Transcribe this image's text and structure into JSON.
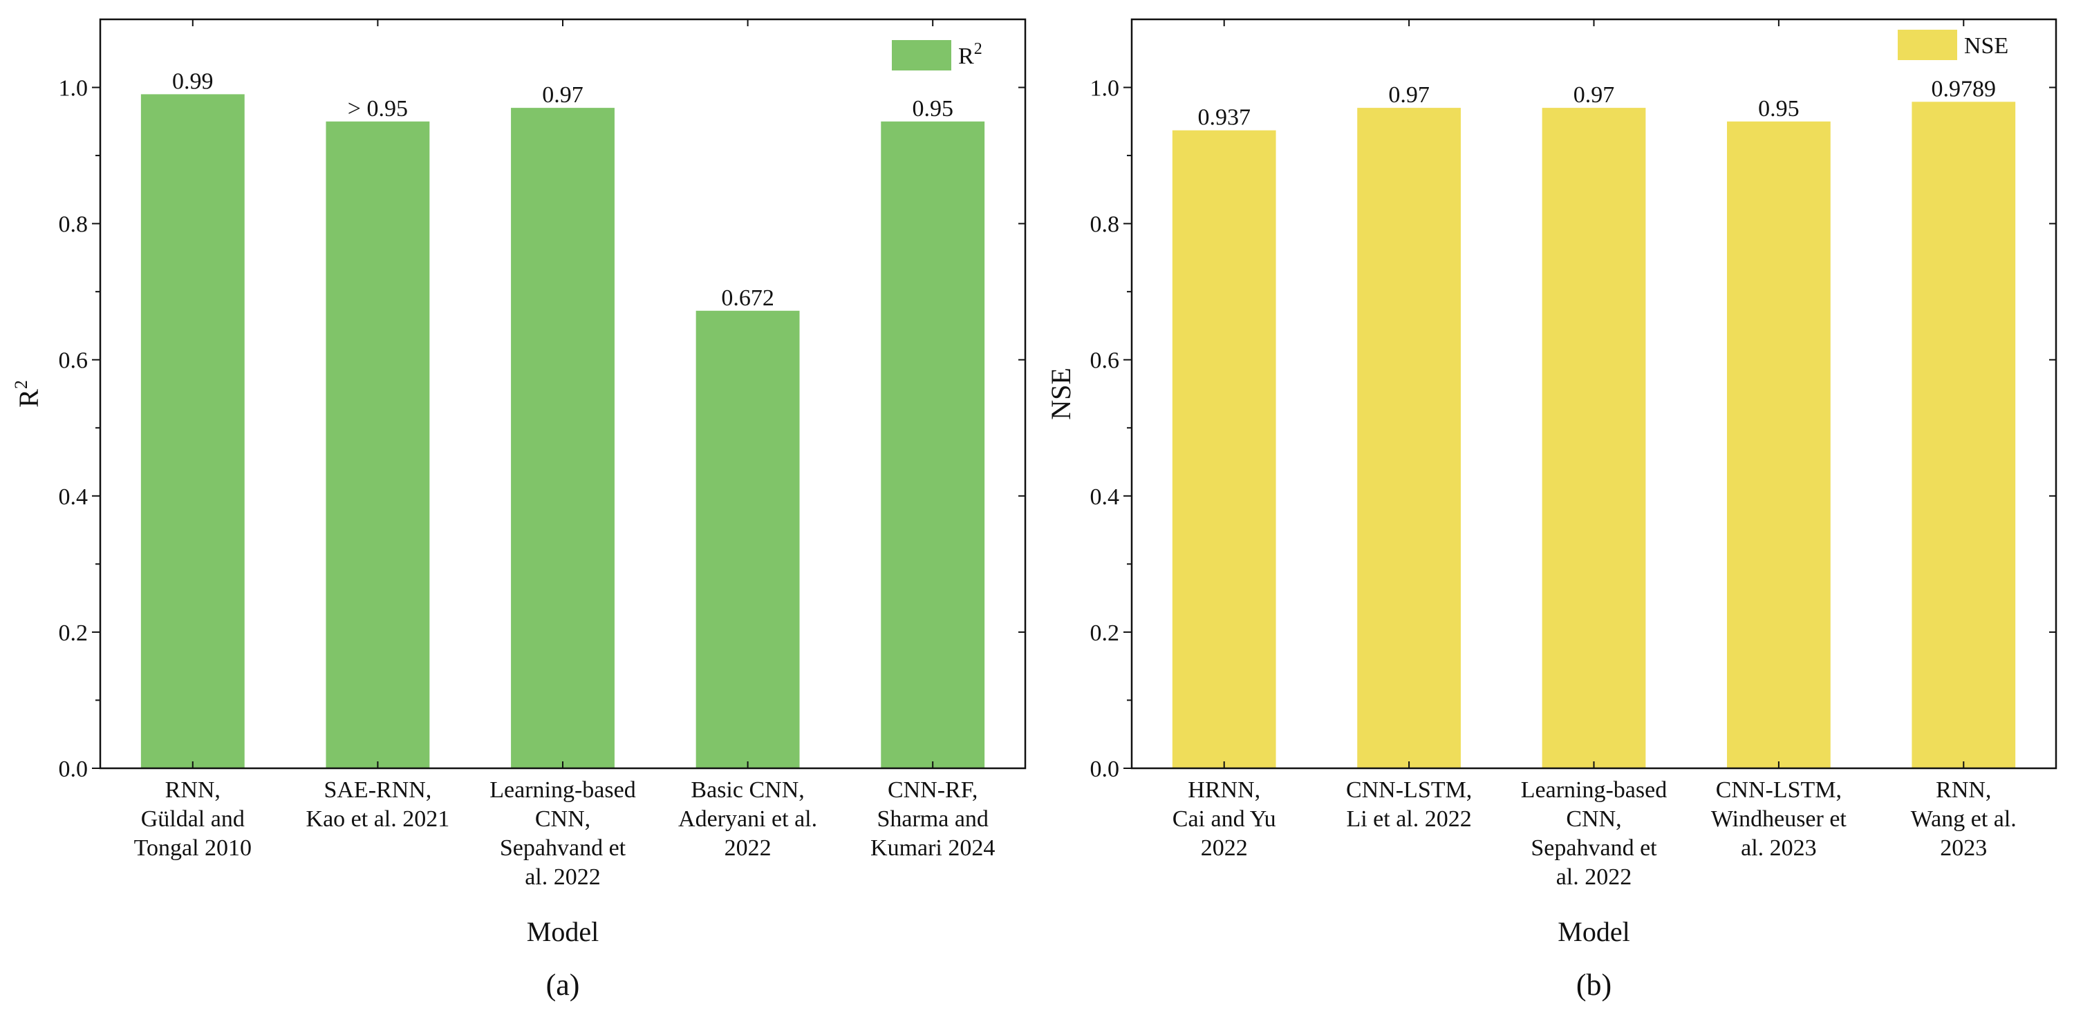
{
  "chart_data": [
    {
      "type": "bar",
      "panel_label": "(a)",
      "xlabel": "Model",
      "ylabel": "R",
      "ylabel_sup": "2",
      "legend": {
        "label": "R",
        "label_sup": "2",
        "color": "#80c469",
        "placement": "top-right"
      },
      "ylim": [
        0,
        1.1
      ],
      "yticks": [
        "0.0",
        "0.2",
        "0.4",
        "0.6",
        "0.8",
        "1.0"
      ],
      "categories": [
        [
          "RNN,",
          "Güldal and",
          "Tongal 2010"
        ],
        [
          "SAE-RNN,",
          "Kao et al. 2021"
        ],
        [
          "Learning-based",
          "CNN,",
          "Sepahvand et",
          "al. 2022"
        ],
        [
          "Basic CNN,",
          "Aderyani et al.",
          "2022"
        ],
        [
          "CNN-RF,",
          "Sharma and",
          "Kumari 2024"
        ]
      ],
      "values": [
        0.99,
        0.95,
        0.97,
        0.672,
        0.95
      ],
      "data_labels": [
        "0.99",
        "> 0.95",
        "0.97",
        "0.672",
        "0.95"
      ],
      "bar_color": "#80c469"
    },
    {
      "type": "bar",
      "panel_label": "(b)",
      "xlabel": "Model",
      "ylabel": "NSE",
      "ylabel_sup": "",
      "legend": {
        "label": "NSE",
        "label_sup": "",
        "color": "#efdd5a",
        "placement": "top-right"
      },
      "ylim": [
        0,
        1.1
      ],
      "yticks": [
        "0.0",
        "0.2",
        "0.4",
        "0.6",
        "0.8",
        "1.0"
      ],
      "categories": [
        [
          "HRNN,",
          "Cai and Yu",
          "2022"
        ],
        [
          "CNN-LSTM,",
          "Li et al. 2022"
        ],
        [
          "Learning-based",
          "CNN,",
          "Sepahvand et",
          "al. 2022"
        ],
        [
          "CNN-LSTM,",
          "Windheuser et",
          "al. 2023"
        ],
        [
          "RNN,",
          "Wang et al.",
          "2023"
        ]
      ],
      "values": [
        0.937,
        0.97,
        0.97,
        0.95,
        0.9789
      ],
      "data_labels": [
        "0.937",
        "0.97",
        "0.97",
        "0.95",
        "0.9789"
      ],
      "bar_color": "#efdd5a"
    }
  ]
}
